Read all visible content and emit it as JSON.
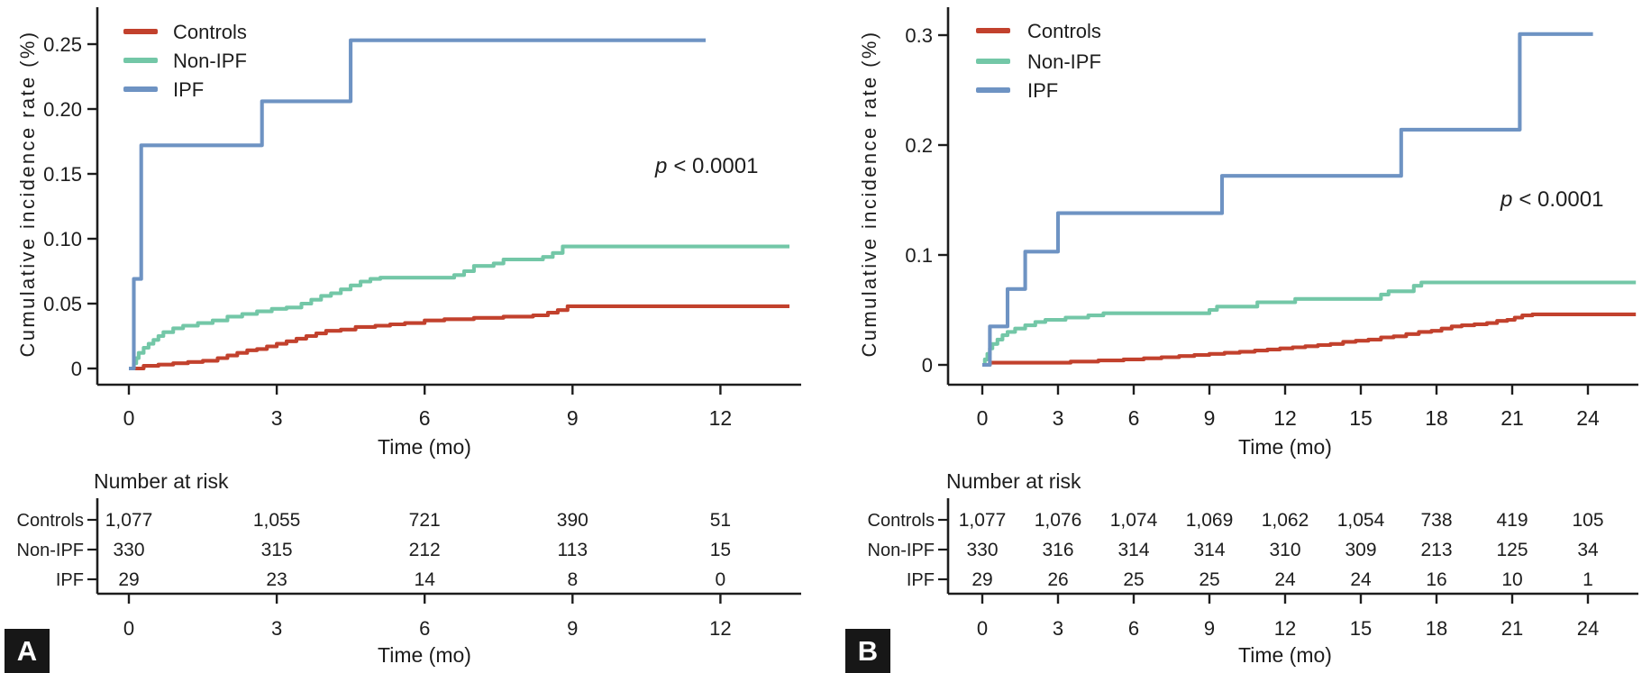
{
  "chart_data": [
    {
      "type": "line",
      "subtype": "cumulative-incidence-step",
      "panel_label": "A",
      "ylabel": "Cumulative incidence rate (%)",
      "xlabel": "Time (mo)",
      "p_symbol": "p",
      "p_rest": "< 0.0001",
      "xlim": [
        0,
        13.6
      ],
      "ylim": [
        0,
        0.2775
      ],
      "x_tick_values": [
        0,
        3,
        6,
        9,
        12
      ],
      "x_tick_labels": [
        "0",
        "3",
        "6",
        "9",
        "12"
      ],
      "y_tick_values": [
        0,
        0.05,
        0.1,
        0.15,
        0.2,
        0.25
      ],
      "y_tick_labels": [
        "0",
        "0.05",
        "0.10",
        "0.15",
        "0.20",
        "0.25"
      ],
      "grid": false,
      "legend_position": "top-left",
      "series": [
        {
          "name": "Controls",
          "color": "#c2412d",
          "step_points": [
            [
              0,
              0
            ],
            [
              0.3,
              0.002
            ],
            [
              0.6,
              0.003
            ],
            [
              0.9,
              0.004
            ],
            [
              1.2,
              0.005
            ],
            [
              1.5,
              0.006
            ],
            [
              1.8,
              0.008
            ],
            [
              2.0,
              0.01
            ],
            [
              2.2,
              0.012
            ],
            [
              2.4,
              0.014
            ],
            [
              2.6,
              0.015
            ],
            [
              2.8,
              0.017
            ],
            [
              3.0,
              0.019
            ],
            [
              3.2,
              0.021
            ],
            [
              3.4,
              0.023
            ],
            [
              3.6,
              0.025
            ],
            [
              3.8,
              0.027
            ],
            [
              4.0,
              0.029
            ],
            [
              4.3,
              0.03
            ],
            [
              4.6,
              0.032
            ],
            [
              5.0,
              0.033
            ],
            [
              5.3,
              0.034
            ],
            [
              5.6,
              0.035
            ],
            [
              6.0,
              0.037
            ],
            [
              6.4,
              0.038
            ],
            [
              7.0,
              0.039
            ],
            [
              7.6,
              0.04
            ],
            [
              8.2,
              0.041
            ],
            [
              8.5,
              0.043
            ],
            [
              8.7,
              0.045
            ],
            [
              8.9,
              0.048
            ],
            [
              13.4,
              0.048
            ]
          ]
        },
        {
          "name": "Non-IPF",
          "color": "#73c7a7",
          "step_points": [
            [
              0,
              0
            ],
            [
              0.1,
              0.004
            ],
            [
              0.15,
              0.008
            ],
            [
              0.2,
              0.012
            ],
            [
              0.3,
              0.016
            ],
            [
              0.4,
              0.019
            ],
            [
              0.5,
              0.022
            ],
            [
              0.6,
              0.025
            ],
            [
              0.7,
              0.028
            ],
            [
              0.9,
              0.031
            ],
            [
              1.1,
              0.033
            ],
            [
              1.4,
              0.035
            ],
            [
              1.7,
              0.037
            ],
            [
              2.0,
              0.04
            ],
            [
              2.3,
              0.042
            ],
            [
              2.6,
              0.044
            ],
            [
              2.9,
              0.046
            ],
            [
              3.2,
              0.047
            ],
            [
              3.5,
              0.05
            ],
            [
              3.7,
              0.053
            ],
            [
              3.9,
              0.056
            ],
            [
              4.1,
              0.058
            ],
            [
              4.3,
              0.061
            ],
            [
              4.5,
              0.064
            ],
            [
              4.7,
              0.067
            ],
            [
              4.9,
              0.069
            ],
            [
              5.1,
              0.07
            ],
            [
              6.6,
              0.072
            ],
            [
              6.8,
              0.075
            ],
            [
              7.0,
              0.079
            ],
            [
              7.4,
              0.081
            ],
            [
              7.6,
              0.084
            ],
            [
              8.4,
              0.086
            ],
            [
              8.6,
              0.089
            ],
            [
              8.8,
              0.094
            ],
            [
              13.4,
              0.094
            ]
          ]
        },
        {
          "name": "IPF",
          "color": "#6e93c3",
          "step_points": [
            [
              0,
              0
            ],
            [
              0.1,
              0.069
            ],
            [
              0.25,
              0.172
            ],
            [
              2.7,
              0.206
            ],
            [
              4.5,
              0.253
            ],
            [
              11.7,
              0.253
            ]
          ]
        }
      ],
      "number_at_risk": {
        "title": "Number at risk",
        "time_points": [
          0,
          3,
          6,
          9,
          12
        ],
        "rows": [
          {
            "name": "Controls",
            "color": "#c2412d",
            "values": [
              "1,077",
              "1,055",
              "721",
              "390",
              "51"
            ]
          },
          {
            "name": "Non-IPF",
            "color": "#73c7a7",
            "values": [
              "330",
              "315",
              "212",
              "113",
              "15"
            ]
          },
          {
            "name": "IPF",
            "color": "#6e93c3",
            "values": [
              "29",
              "23",
              "14",
              "8",
              "0"
            ]
          }
        ]
      }
    },
    {
      "type": "line",
      "subtype": "cumulative-incidence-step",
      "panel_label": "B",
      "ylabel": "Cumulative incidence rate (%)",
      "xlabel": "Time (mo)",
      "p_symbol": "p",
      "p_rest": "< 0.0001",
      "xlim": [
        0,
        26
      ],
      "ylim": [
        0,
        0.326
      ],
      "x_tick_values": [
        0,
        3,
        6,
        9,
        12,
        15,
        18,
        21,
        24
      ],
      "x_tick_labels": [
        "0",
        "3",
        "6",
        "9",
        "12",
        "15",
        "18",
        "21",
        "24"
      ],
      "y_tick_values": [
        0,
        0.1,
        0.2,
        0.3
      ],
      "y_tick_labels": [
        "0",
        "0.1",
        "0.2",
        "0.3"
      ],
      "grid": false,
      "legend_position": "top-left",
      "series": [
        {
          "name": "Controls",
          "color": "#c2412d",
          "step_points": [
            [
              0,
              0
            ],
            [
              0.3,
              0.002
            ],
            [
              3.5,
              0.003
            ],
            [
              4.6,
              0.004
            ],
            [
              5.6,
              0.005
            ],
            [
              6.4,
              0.006
            ],
            [
              7.1,
              0.007
            ],
            [
              7.8,
              0.008
            ],
            [
              8.4,
              0.009
            ],
            [
              9.0,
              0.01
            ],
            [
              9.6,
              0.011
            ],
            [
              10.2,
              0.012
            ],
            [
              10.8,
              0.013
            ],
            [
              11.3,
              0.014
            ],
            [
              11.8,
              0.015
            ],
            [
              12.3,
              0.016
            ],
            [
              12.8,
              0.017
            ],
            [
              13.3,
              0.018
            ],
            [
              13.8,
              0.019
            ],
            [
              14.3,
              0.021
            ],
            [
              14.8,
              0.022
            ],
            [
              15.3,
              0.023
            ],
            [
              15.8,
              0.025
            ],
            [
              16.3,
              0.026
            ],
            [
              16.8,
              0.028
            ],
            [
              17.3,
              0.03
            ],
            [
              17.8,
              0.031
            ],
            [
              18.2,
              0.033
            ],
            [
              18.6,
              0.035
            ],
            [
              19.0,
              0.036
            ],
            [
              19.5,
              0.037
            ],
            [
              20.0,
              0.038
            ],
            [
              20.4,
              0.04
            ],
            [
              20.8,
              0.041
            ],
            [
              21.1,
              0.043
            ],
            [
              21.4,
              0.045
            ],
            [
              21.8,
              0.046
            ],
            [
              25.9,
              0.046
            ]
          ]
        },
        {
          "name": "Non-IPF",
          "color": "#73c7a7",
          "step_points": [
            [
              0,
              0
            ],
            [
              0.1,
              0.005
            ],
            [
              0.2,
              0.01
            ],
            [
              0.3,
              0.015
            ],
            [
              0.4,
              0.019
            ],
            [
              0.6,
              0.023
            ],
            [
              0.8,
              0.027
            ],
            [
              1.0,
              0.03
            ],
            [
              1.3,
              0.033
            ],
            [
              1.7,
              0.036
            ],
            [
              2.1,
              0.039
            ],
            [
              2.5,
              0.041
            ],
            [
              3.3,
              0.043
            ],
            [
              4.2,
              0.045
            ],
            [
              4.8,
              0.047
            ],
            [
              9.0,
              0.05
            ],
            [
              9.3,
              0.053
            ],
            [
              10.9,
              0.057
            ],
            [
              12.4,
              0.06
            ],
            [
              15.8,
              0.064
            ],
            [
              16.1,
              0.067
            ],
            [
              17.1,
              0.072
            ],
            [
              17.4,
              0.075
            ],
            [
              25.9,
              0.075
            ]
          ]
        },
        {
          "name": "IPF",
          "color": "#6e93c3",
          "step_points": [
            [
              0,
              0
            ],
            [
              0.3,
              0.035
            ],
            [
              1.0,
              0.069
            ],
            [
              1.7,
              0.103
            ],
            [
              3.0,
              0.138
            ],
            [
              9.5,
              0.172
            ],
            [
              16.6,
              0.214
            ],
            [
              21.3,
              0.301
            ],
            [
              24.2,
              0.301
            ]
          ]
        }
      ],
      "number_at_risk": {
        "title": "Number at risk",
        "time_points": [
          0,
          3,
          6,
          9,
          12,
          15,
          18,
          21,
          24
        ],
        "rows": [
          {
            "name": "Controls",
            "color": "#c2412d",
            "values": [
              "1,077",
              "1,076",
              "1,074",
              "1,069",
              "1,062",
              "1,054",
              "738",
              "419",
              "105"
            ]
          },
          {
            "name": "Non-IPF",
            "color": "#73c7a7",
            "values": [
              "330",
              "316",
              "314",
              "314",
              "310",
              "309",
              "213",
              "125",
              "34"
            ]
          },
          {
            "name": "IPF",
            "color": "#6e93c3",
            "values": [
              "29",
              "26",
              "25",
              "25",
              "24",
              "24",
              "16",
              "10",
              "1"
            ]
          }
        ]
      }
    }
  ],
  "style": {
    "axis_color": "#1d1d1d",
    "controls_color": "#c2412d",
    "non_ipf_color": "#73c7a7",
    "ipf_color": "#6e93c3",
    "badge_bg": "#171717"
  }
}
